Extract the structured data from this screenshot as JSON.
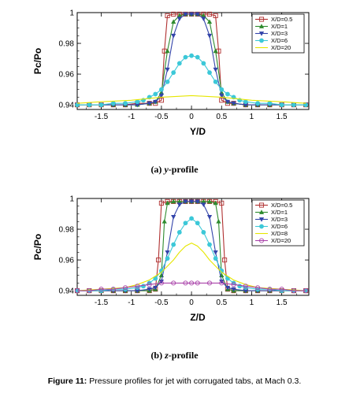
{
  "figure_caption": {
    "number": "Figure 11:",
    "text": " Pressure profiles for jet with corrugated tabs, at Mach 0.3."
  },
  "chart_data": [
    {
      "type": "line",
      "subcaption": {
        "tag": "(a) ",
        "var": "y",
        "rest": "-profile"
      },
      "xlabel": "Y/D",
      "ylabel": "Pc/Po",
      "xlim": [
        -1.9,
        1.95
      ],
      "ylim": [
        0.937,
        1.0
      ],
      "xticks": [
        -1.5,
        -1,
        -0.5,
        0,
        0.5,
        1,
        1.5
      ],
      "xtick_labels": [
        "-1.5",
        "-1",
        "-0.5",
        "0",
        "0.5",
        "1",
        "1.5"
      ],
      "yticks": [
        0.94,
        0.96,
        0.98,
        1.0
      ],
      "ytick_labels": [
        "0.94",
        "0.96",
        "0.98",
        "1"
      ],
      "grid": false,
      "legend_position": "top-right",
      "series": [
        {
          "name": "X/D=0.5",
          "color": "#b03030",
          "marker": "square",
          "x": [
            -1.9,
            -1.7,
            -1.5,
            -1.3,
            -1.1,
            -0.9,
            -0.7,
            -0.6,
            -0.5,
            -0.45,
            -0.4,
            -0.3,
            -0.2,
            -0.1,
            0,
            0.1,
            0.2,
            0.3,
            0.4,
            0.45,
            0.5,
            0.6,
            0.7,
            0.9,
            1.1,
            1.3,
            1.5,
            1.7,
            1.9
          ],
          "y": [
            0.94,
            0.94,
            0.94,
            0.94,
            0.94,
            0.941,
            0.941,
            0.941,
            0.943,
            0.975,
            0.998,
            0.999,
            0.999,
            0.999,
            0.999,
            0.999,
            0.999,
            0.999,
            0.998,
            0.975,
            0.943,
            0.941,
            0.941,
            0.94,
            0.94,
            0.94,
            0.94,
            0.94,
            0.94
          ]
        },
        {
          "name": "X/D=1",
          "color": "#2e8b2e",
          "marker": "triangle-up",
          "x": [
            -1.9,
            -1.7,
            -1.5,
            -1.3,
            -1.1,
            -0.9,
            -0.7,
            -0.6,
            -0.5,
            -0.4,
            -0.3,
            -0.2,
            -0.1,
            0,
            0.1,
            0.2,
            0.3,
            0.4,
            0.5,
            0.6,
            0.7,
            0.9,
            1.1,
            1.3,
            1.5,
            1.7,
            1.9
          ],
          "y": [
            0.94,
            0.94,
            0.94,
            0.94,
            0.94,
            0.94,
            0.941,
            0.942,
            0.948,
            0.975,
            0.994,
            0.998,
            0.999,
            0.999,
            0.999,
            0.998,
            0.994,
            0.975,
            0.948,
            0.942,
            0.941,
            0.94,
            0.94,
            0.94,
            0.94,
            0.94,
            0.94
          ]
        },
        {
          "name": "X/D=3",
          "color": "#3344aa",
          "marker": "triangle-down",
          "x": [
            -1.9,
            -1.7,
            -1.5,
            -1.3,
            -1.1,
            -0.9,
            -0.7,
            -0.6,
            -0.5,
            -0.4,
            -0.3,
            -0.2,
            -0.1,
            0,
            0.1,
            0.2,
            0.3,
            0.4,
            0.5,
            0.6,
            0.7,
            0.9,
            1.1,
            1.3,
            1.5,
            1.7,
            1.9
          ],
          "y": [
            0.94,
            0.94,
            0.94,
            0.94,
            0.94,
            0.94,
            0.941,
            0.942,
            0.946,
            0.963,
            0.985,
            0.996,
            0.999,
            0.999,
            0.999,
            0.996,
            0.985,
            0.963,
            0.946,
            0.942,
            0.941,
            0.94,
            0.94,
            0.94,
            0.94,
            0.94,
            0.94
          ]
        },
        {
          "name": "X/D=6",
          "color": "#3cc8d8",
          "marker": "circle",
          "x": [
            -1.9,
            -1.7,
            -1.5,
            -1.3,
            -1.1,
            -0.9,
            -0.8,
            -0.7,
            -0.6,
            -0.5,
            -0.4,
            -0.3,
            -0.2,
            -0.1,
            0,
            0.1,
            0.2,
            0.3,
            0.4,
            0.5,
            0.6,
            0.7,
            0.8,
            0.9,
            1.1,
            1.3,
            1.5,
            1.7,
            1.9
          ],
          "y": [
            0.94,
            0.94,
            0.94,
            0.941,
            0.941,
            0.942,
            0.943,
            0.945,
            0.947,
            0.95,
            0.955,
            0.961,
            0.967,
            0.971,
            0.972,
            0.971,
            0.967,
            0.961,
            0.955,
            0.95,
            0.947,
            0.945,
            0.943,
            0.942,
            0.941,
            0.941,
            0.94,
            0.94,
            0.94
          ]
        },
        {
          "name": "X/D=20",
          "color": "#e6e600",
          "marker": "none",
          "x": [
            -1.9,
            -1.5,
            -1,
            -0.5,
            0,
            0.5,
            1,
            1.5,
            1.9
          ],
          "y": [
            0.941,
            0.942,
            0.943,
            0.945,
            0.946,
            0.945,
            0.943,
            0.942,
            0.941
          ]
        }
      ]
    },
    {
      "type": "line",
      "subcaption": {
        "tag": "(b) ",
        "var": "z",
        "rest": "-profile"
      },
      "xlabel": "Z/D",
      "ylabel": "Pc/Po",
      "xlim": [
        -1.9,
        1.95
      ],
      "ylim": [
        0.937,
        1.0
      ],
      "xticks": [
        -1.5,
        -1,
        -0.5,
        0,
        0.5,
        1,
        1.5
      ],
      "xtick_labels": [
        "-1.5",
        "-1",
        "-0.5",
        "0",
        "0.5",
        "1",
        "1.5"
      ],
      "yticks": [
        0.94,
        0.96,
        0.98,
        1.0
      ],
      "ytick_labels": [
        "0.94",
        "0.96",
        "0.98",
        "1"
      ],
      "grid": false,
      "legend_position": "top-right",
      "series": [
        {
          "name": "X/D=0.5",
          "color": "#b03030",
          "marker": "square",
          "x": [
            -1.9,
            -1.7,
            -1.5,
            -1.3,
            -1.1,
            -0.9,
            -0.7,
            -0.6,
            -0.55,
            -0.5,
            -0.4,
            -0.3,
            -0.2,
            -0.1,
            0,
            0.1,
            0.2,
            0.3,
            0.4,
            0.5,
            0.55,
            0.6,
            0.7,
            0.9,
            1.1,
            1.3,
            1.5,
            1.7,
            1.9
          ],
          "y": [
            0.94,
            0.94,
            0.94,
            0.94,
            0.94,
            0.94,
            0.94,
            0.941,
            0.96,
            0.997,
            0.998,
            0.998,
            0.998,
            0.998,
            0.998,
            0.998,
            0.998,
            0.998,
            0.998,
            0.997,
            0.96,
            0.941,
            0.94,
            0.94,
            0.94,
            0.94,
            0.94,
            0.94,
            0.94
          ]
        },
        {
          "name": "X/D=1",
          "color": "#2e8b2e",
          "marker": "triangle-up",
          "x": [
            -1.9,
            -1.7,
            -1.5,
            -1.3,
            -1.1,
            -0.9,
            -0.7,
            -0.6,
            -0.5,
            -0.45,
            -0.4,
            -0.3,
            -0.2,
            -0.1,
            0,
            0.1,
            0.2,
            0.3,
            0.4,
            0.45,
            0.5,
            0.6,
            0.7,
            0.9,
            1.1,
            1.3,
            1.5,
            1.7,
            1.9
          ],
          "y": [
            0.94,
            0.94,
            0.94,
            0.94,
            0.94,
            0.94,
            0.94,
            0.941,
            0.95,
            0.985,
            0.997,
            0.998,
            0.998,
            0.998,
            0.998,
            0.998,
            0.998,
            0.998,
            0.997,
            0.985,
            0.95,
            0.941,
            0.94,
            0.94,
            0.94,
            0.94,
            0.94,
            0.94,
            0.94
          ]
        },
        {
          "name": "X/D=3",
          "color": "#3344aa",
          "marker": "triangle-down",
          "x": [
            -1.9,
            -1.7,
            -1.5,
            -1.3,
            -1.1,
            -0.9,
            -0.7,
            -0.6,
            -0.5,
            -0.4,
            -0.3,
            -0.2,
            -0.1,
            0,
            0.1,
            0.2,
            0.3,
            0.4,
            0.5,
            0.6,
            0.7,
            0.9,
            1.1,
            1.3,
            1.5,
            1.7,
            1.9
          ],
          "y": [
            0.94,
            0.94,
            0.94,
            0.94,
            0.94,
            0.94,
            0.941,
            0.942,
            0.946,
            0.965,
            0.988,
            0.996,
            0.998,
            0.998,
            0.998,
            0.996,
            0.988,
            0.965,
            0.946,
            0.942,
            0.941,
            0.94,
            0.94,
            0.94,
            0.94,
            0.94,
            0.94
          ]
        },
        {
          "name": "X/D=6",
          "color": "#3cc8d8",
          "marker": "circle",
          "x": [
            -1.9,
            -1.7,
            -1.5,
            -1.3,
            -1.1,
            -0.9,
            -0.8,
            -0.7,
            -0.6,
            -0.5,
            -0.4,
            -0.3,
            -0.2,
            -0.1,
            0,
            0.1,
            0.2,
            0.3,
            0.4,
            0.5,
            0.6,
            0.7,
            0.8,
            0.9,
            1.1,
            1.3,
            1.5,
            1.7,
            1.9
          ],
          "y": [
            0.94,
            0.94,
            0.94,
            0.941,
            0.941,
            0.942,
            0.943,
            0.945,
            0.948,
            0.953,
            0.961,
            0.97,
            0.978,
            0.984,
            0.987,
            0.984,
            0.978,
            0.97,
            0.961,
            0.953,
            0.948,
            0.945,
            0.943,
            0.942,
            0.941,
            0.941,
            0.94,
            0.94,
            0.94
          ]
        },
        {
          "name": "X/D=8",
          "color": "#e6e600",
          "marker": "none",
          "x": [
            -1.9,
            -1.5,
            -1.1,
            -0.9,
            -0.7,
            -0.5,
            -0.3,
            -0.2,
            -0.1,
            0,
            0.1,
            0.2,
            0.3,
            0.5,
            0.7,
            0.9,
            1.1,
            1.5,
            1.9
          ],
          "y": [
            0.94,
            0.941,
            0.942,
            0.944,
            0.947,
            0.952,
            0.96,
            0.965,
            0.969,
            0.971,
            0.969,
            0.965,
            0.96,
            0.952,
            0.947,
            0.944,
            0.942,
            0.941,
            0.94
          ]
        },
        {
          "name": "X/D=20",
          "color": "#aa44aa",
          "marker": "circle-open",
          "x": [
            -1.9,
            -1.7,
            -1.5,
            -1.3,
            -1.1,
            -0.9,
            -0.7,
            -0.5,
            -0.3,
            -0.1,
            0,
            0.1,
            0.3,
            0.5,
            0.7,
            0.9,
            1.1,
            1.3,
            1.5,
            1.7,
            1.9
          ],
          "y": [
            0.94,
            0.94,
            0.941,
            0.941,
            0.942,
            0.943,
            0.944,
            0.945,
            0.945,
            0.945,
            0.945,
            0.945,
            0.945,
            0.945,
            0.944,
            0.943,
            0.942,
            0.941,
            0.941,
            0.94,
            0.94
          ]
        }
      ]
    }
  ]
}
